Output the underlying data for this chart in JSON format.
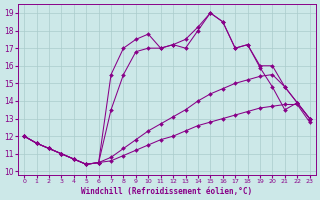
{
  "xlabel": "Windchill (Refroidissement éolien,°C)",
  "background_color": "#cce8e8",
  "line_color": "#880088",
  "xlim": [
    -0.5,
    23.5
  ],
  "ylim": [
    9.8,
    19.5
  ],
  "xticks": [
    0,
    1,
    2,
    3,
    4,
    5,
    6,
    7,
    8,
    9,
    10,
    11,
    12,
    13,
    14,
    15,
    16,
    17,
    18,
    19,
    20,
    21,
    22,
    23
  ],
  "yticks": [
    10,
    11,
    12,
    13,
    14,
    15,
    16,
    17,
    18,
    19
  ],
  "lines": [
    {
      "x": [
        0,
        1,
        2,
        3,
        4,
        5,
        6,
        7,
        8,
        9,
        10,
        11,
        12,
        13,
        14,
        15,
        16,
        17,
        18,
        19,
        20,
        21,
        22,
        23
      ],
      "y": [
        12.0,
        11.6,
        11.3,
        11.0,
        10.7,
        10.4,
        10.5,
        10.6,
        10.9,
        11.2,
        11.5,
        11.8,
        12.0,
        12.3,
        12.6,
        12.8,
        13.0,
        13.2,
        13.4,
        13.6,
        13.7,
        13.8,
        13.8,
        12.8
      ]
    },
    {
      "x": [
        0,
        1,
        2,
        3,
        4,
        5,
        6,
        7,
        8,
        9,
        10,
        11,
        12,
        13,
        14,
        15,
        16,
        17,
        18,
        19,
        20,
        21,
        22,
        23
      ],
      "y": [
        12.0,
        11.6,
        11.3,
        11.0,
        10.7,
        10.4,
        10.5,
        10.8,
        11.3,
        11.8,
        12.3,
        12.7,
        13.1,
        13.5,
        14.0,
        14.4,
        14.7,
        15.0,
        15.2,
        15.4,
        15.5,
        14.8,
        13.9,
        13.0
      ]
    },
    {
      "x": [
        0,
        1,
        2,
        3,
        4,
        5,
        6,
        7,
        8,
        9,
        10,
        11,
        12,
        13,
        14,
        15,
        16,
        17,
        18,
        19,
        20,
        21,
        22,
        23
      ],
      "y": [
        12.0,
        11.6,
        11.3,
        11.0,
        10.7,
        10.4,
        10.5,
        13.5,
        15.5,
        16.8,
        17.0,
        17.0,
        17.2,
        17.0,
        18.0,
        19.0,
        18.5,
        17.0,
        17.2,
        16.0,
        16.0,
        14.8,
        13.9,
        13.0
      ]
    },
    {
      "x": [
        0,
        1,
        2,
        3,
        4,
        5,
        6,
        7,
        8,
        9,
        10,
        11,
        12,
        13,
        14,
        15,
        16,
        17,
        18,
        19,
        20,
        21,
        22,
        23
      ],
      "y": [
        12.0,
        11.6,
        11.3,
        11.0,
        10.7,
        10.4,
        10.5,
        15.5,
        17.0,
        17.5,
        17.8,
        17.0,
        17.2,
        17.5,
        18.2,
        19.0,
        18.5,
        17.0,
        17.2,
        15.9,
        14.8,
        13.5,
        13.9,
        13.0
      ]
    }
  ]
}
